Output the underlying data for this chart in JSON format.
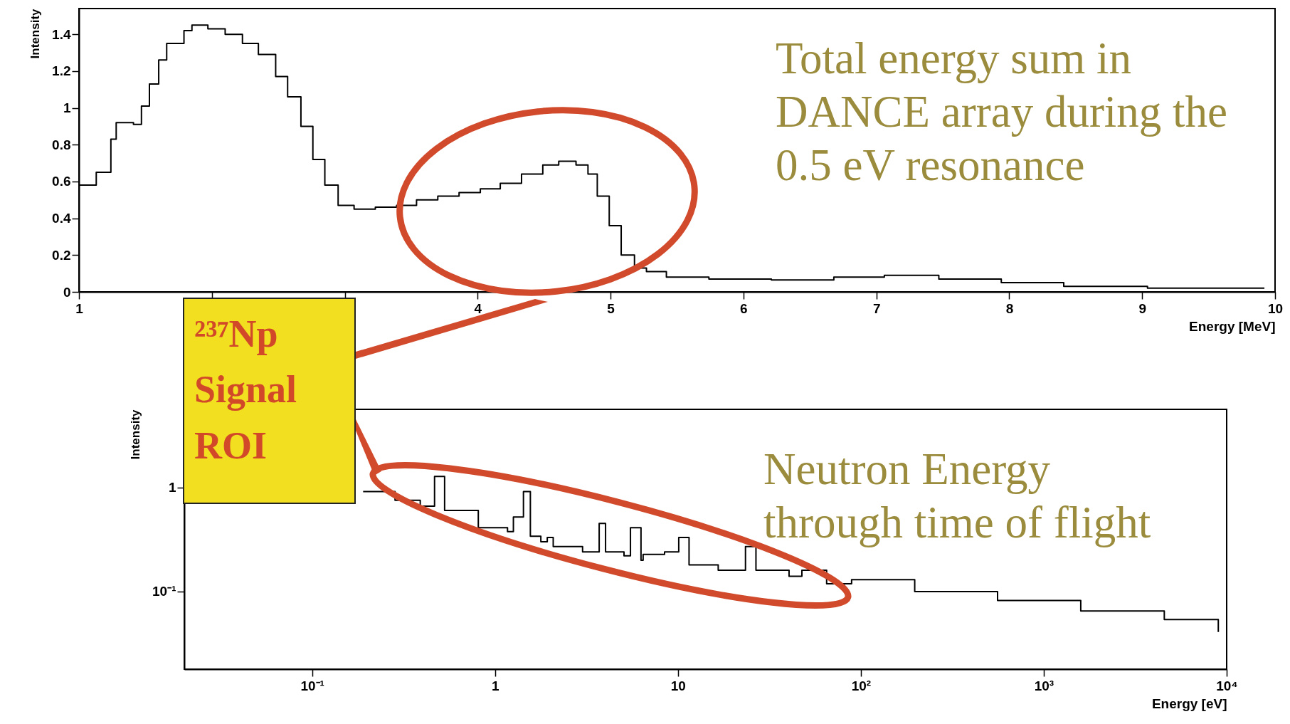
{
  "chart_data": [
    {
      "type": "step",
      "xlabel": "Energy [MeV]",
      "ylabel": "Intensity",
      "xlim": [
        1,
        10
      ],
      "xticks": [
        1,
        {
          "value": 2,
          "label": null
        },
        {
          "value": 3,
          "label": null
        },
        4,
        5,
        6,
        7,
        8,
        9,
        10
      ],
      "ylim": [
        0,
        1.54
      ],
      "yticks": [
        0,
        0.2,
        0.4,
        0.6,
        0.8,
        1,
        1.2,
        1.4
      ],
      "grid": false,
      "annotations": [
        "Total energy sum in DANCE array during the 0.5 eV resonance"
      ],
      "series": [
        {
          "color": "#000000",
          "x": [
            1.0,
            1.13,
            1.24,
            1.28,
            1.41,
            1.47,
            1.53,
            1.6,
            1.66,
            1.79,
            1.85,
            1.97,
            2.1,
            2.23,
            2.35,
            2.48,
            2.57,
            2.67,
            2.76,
            2.85,
            2.95,
            3.07,
            3.23,
            3.39,
            3.54,
            3.7,
            3.86,
            4.02,
            4.17,
            4.33,
            4.49,
            4.61,
            4.74,
            4.83,
            4.9,
            4.99,
            5.08,
            5.18,
            5.27,
            5.42,
            5.74,
            6.21,
            6.68,
            7.06,
            7.47,
            7.94,
            8.41,
            9.04,
            9.92
          ],
          "values": [
            0.58,
            0.65,
            0.83,
            0.92,
            0.91,
            1.01,
            1.13,
            1.26,
            1.35,
            1.42,
            1.45,
            1.43,
            1.4,
            1.35,
            1.29,
            1.17,
            1.06,
            0.9,
            0.72,
            0.58,
            0.47,
            0.45,
            0.46,
            0.47,
            0.5,
            0.52,
            0.54,
            0.56,
            0.59,
            0.64,
            0.69,
            0.71,
            0.69,
            0.64,
            0.52,
            0.36,
            0.2,
            0.13,
            0.11,
            0.08,
            0.07,
            0.065,
            0.08,
            0.09,
            0.07,
            0.05,
            0.03,
            0.02,
            0.02
          ]
        }
      ]
    },
    {
      "type": "step",
      "xlabel": "Energy [eV]",
      "ylabel": "Intensity",
      "log": "xy",
      "xlim": [
        0.02,
        10000
      ],
      "xticks": [
        {
          "value": 0.1,
          "label": "10⁻¹"
        },
        1,
        10,
        {
          "value": 100,
          "label": "10²"
        },
        {
          "value": 1000,
          "label": "10³"
        },
        {
          "value": 10000,
          "label": "10⁴"
        }
      ],
      "ylim": [
        0.018,
        5.6
      ],
      "yticks": [
        {
          "value": 0.1,
          "label": "10⁻¹"
        },
        1
      ],
      "grid": false,
      "annotations": [
        "Neutron Energy through time of flight",
        "²³⁷Np Signal ROI"
      ],
      "series": [
        {
          "color": "#000000",
          "x": [
            0.19,
            0.284,
            0.39,
            0.467,
            0.53,
            0.81,
            1.17,
            1.26,
            1.43,
            1.56,
            1.78,
            1.93,
            2.08,
            3.01,
            3.71,
            4.02,
            5.07,
            5.5,
            6.28,
            6.45,
            8.45,
            10.1,
            11.5,
            16.6,
            23.4,
            26.7,
            40.5,
            47.6,
            65,
            89,
            197,
            559,
            1593,
            4560,
            9000
          ],
          "values": [
            0.91,
            0.75,
            0.66,
            1.27,
            0.6,
            0.41,
            0.376,
            0.52,
            0.91,
            0.34,
            0.3,
            0.33,
            0.27,
            0.24,
            0.45,
            0.24,
            0.22,
            0.41,
            0.2,
            0.227,
            0.24,
            0.33,
            0.18,
            0.16,
            0.27,
            0.16,
            0.14,
            0.16,
            0.119,
            0.13,
            0.1,
            0.082,
            0.065,
            0.054,
            0.041
          ]
        }
      ]
    }
  ]
}
